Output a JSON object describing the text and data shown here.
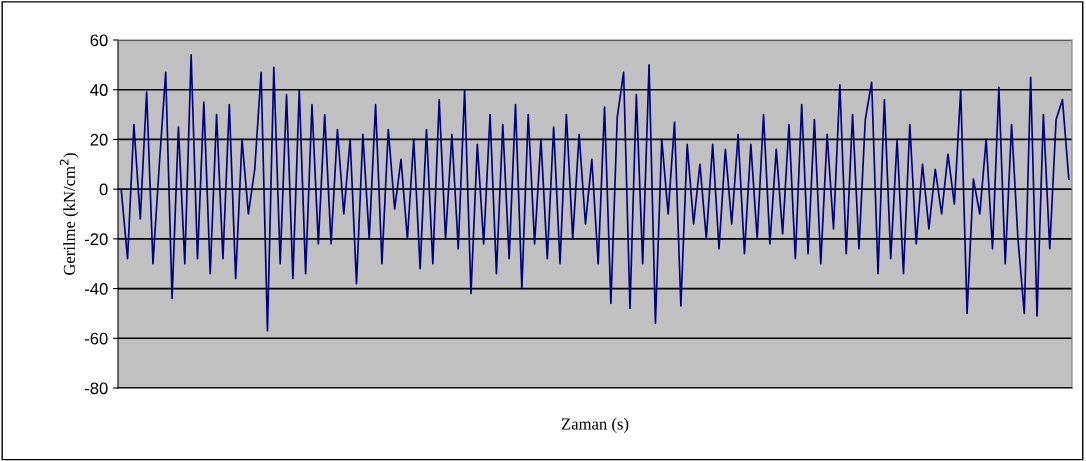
{
  "chart_data": {
    "type": "line",
    "xlabel": "Zaman (s)",
    "ylabel": "Gerilme (kN/cm$^{2}$)",
    "categories": [
      null,
      null,
      null,
      null,
      null,
      null,
      null,
      null,
      null,
      null,
      null,
      null,
      null,
      null,
      null,
      null,
      null,
      null,
      null,
      null,
      null,
      null,
      null,
      null,
      null,
      null,
      null,
      null,
      null,
      null,
      null,
      null,
      null,
      null,
      null,
      null,
      null,
      null,
      null,
      null,
      null,
      null,
      null,
      null,
      null,
      null,
      null,
      null,
      null,
      null,
      null,
      null,
      null,
      null,
      null,
      null,
      null,
      null,
      null,
      null,
      null,
      null,
      null,
      null,
      null,
      null,
      null,
      null,
      null,
      null,
      null,
      null,
      null,
      null,
      null,
      null,
      null,
      null,
      null,
      null,
      null,
      null,
      null,
      null,
      null,
      null,
      null,
      null,
      null,
      null,
      null,
      null,
      null,
      null,
      null,
      null,
      null,
      null,
      null,
      null,
      null,
      null,
      null,
      null,
      null,
      null,
      null,
      null,
      null,
      null,
      null,
      null,
      null,
      null,
      null,
      null,
      null,
      null,
      null,
      null,
      null,
      null,
      null,
      null,
      null,
      null,
      null,
      null,
      null,
      null,
      null,
      null,
      null,
      null,
      null,
      null,
      null,
      null,
      null,
      null,
      null,
      null,
      null,
      null,
      null,
      null,
      null,
      null,
      null,
      null
    ],
    "series": [
      {
        "color": "#000080",
        "values": [
          0,
          -28,
          26,
          -12,
          39,
          -30,
          10,
          47,
          -44,
          25,
          -30,
          54,
          -28,
          35,
          -34,
          30,
          -28,
          34,
          -36,
          20,
          -10,
          8,
          47,
          -57,
          49,
          -30,
          38,
          -36,
          40,
          -34,
          34,
          -22,
          30,
          -22,
          24,
          -10,
          20,
          -38,
          22,
          -20,
          34,
          -30,
          24,
          -8,
          12,
          -20,
          20,
          -32,
          24,
          -30,
          36,
          -20,
          22,
          -24,
          40,
          -42,
          18,
          -22,
          30,
          -34,
          26,
          -28,
          34,
          -40,
          30,
          -22,
          20,
          -28,
          25,
          -30,
          30,
          -20,
          22,
          -14,
          12,
          -30,
          33,
          -46,
          29,
          47,
          -48,
          38,
          -30,
          50,
          -54,
          20,
          -10,
          27,
          -47,
          18,
          -14,
          10,
          -20,
          18,
          -24,
          16,
          -14,
          22,
          -26,
          18,
          -20,
          30,
          -22,
          16,
          -18,
          26,
          -28,
          34,
          -26,
          28,
          -30,
          22,
          -16,
          42,
          -26,
          30,
          -24,
          28,
          43,
          -34,
          36,
          -28,
          20,
          -34,
          26,
          -22,
          10,
          -16,
          8,
          -10,
          14,
          -6,
          40,
          -50,
          4,
          -10,
          20,
          -24,
          41,
          -30,
          26,
          -20,
          -50,
          45,
          -51,
          30,
          -24,
          28,
          36,
          4
        ]
      }
    ],
    "ylim": [
      -80,
      60
    ],
    "yticks": [
      -80,
      -60,
      -40,
      -20,
      0,
      20,
      40,
      60
    ],
    "grid": "y",
    "legend": false,
    "marker": "none",
    "line_style": "solid"
  }
}
